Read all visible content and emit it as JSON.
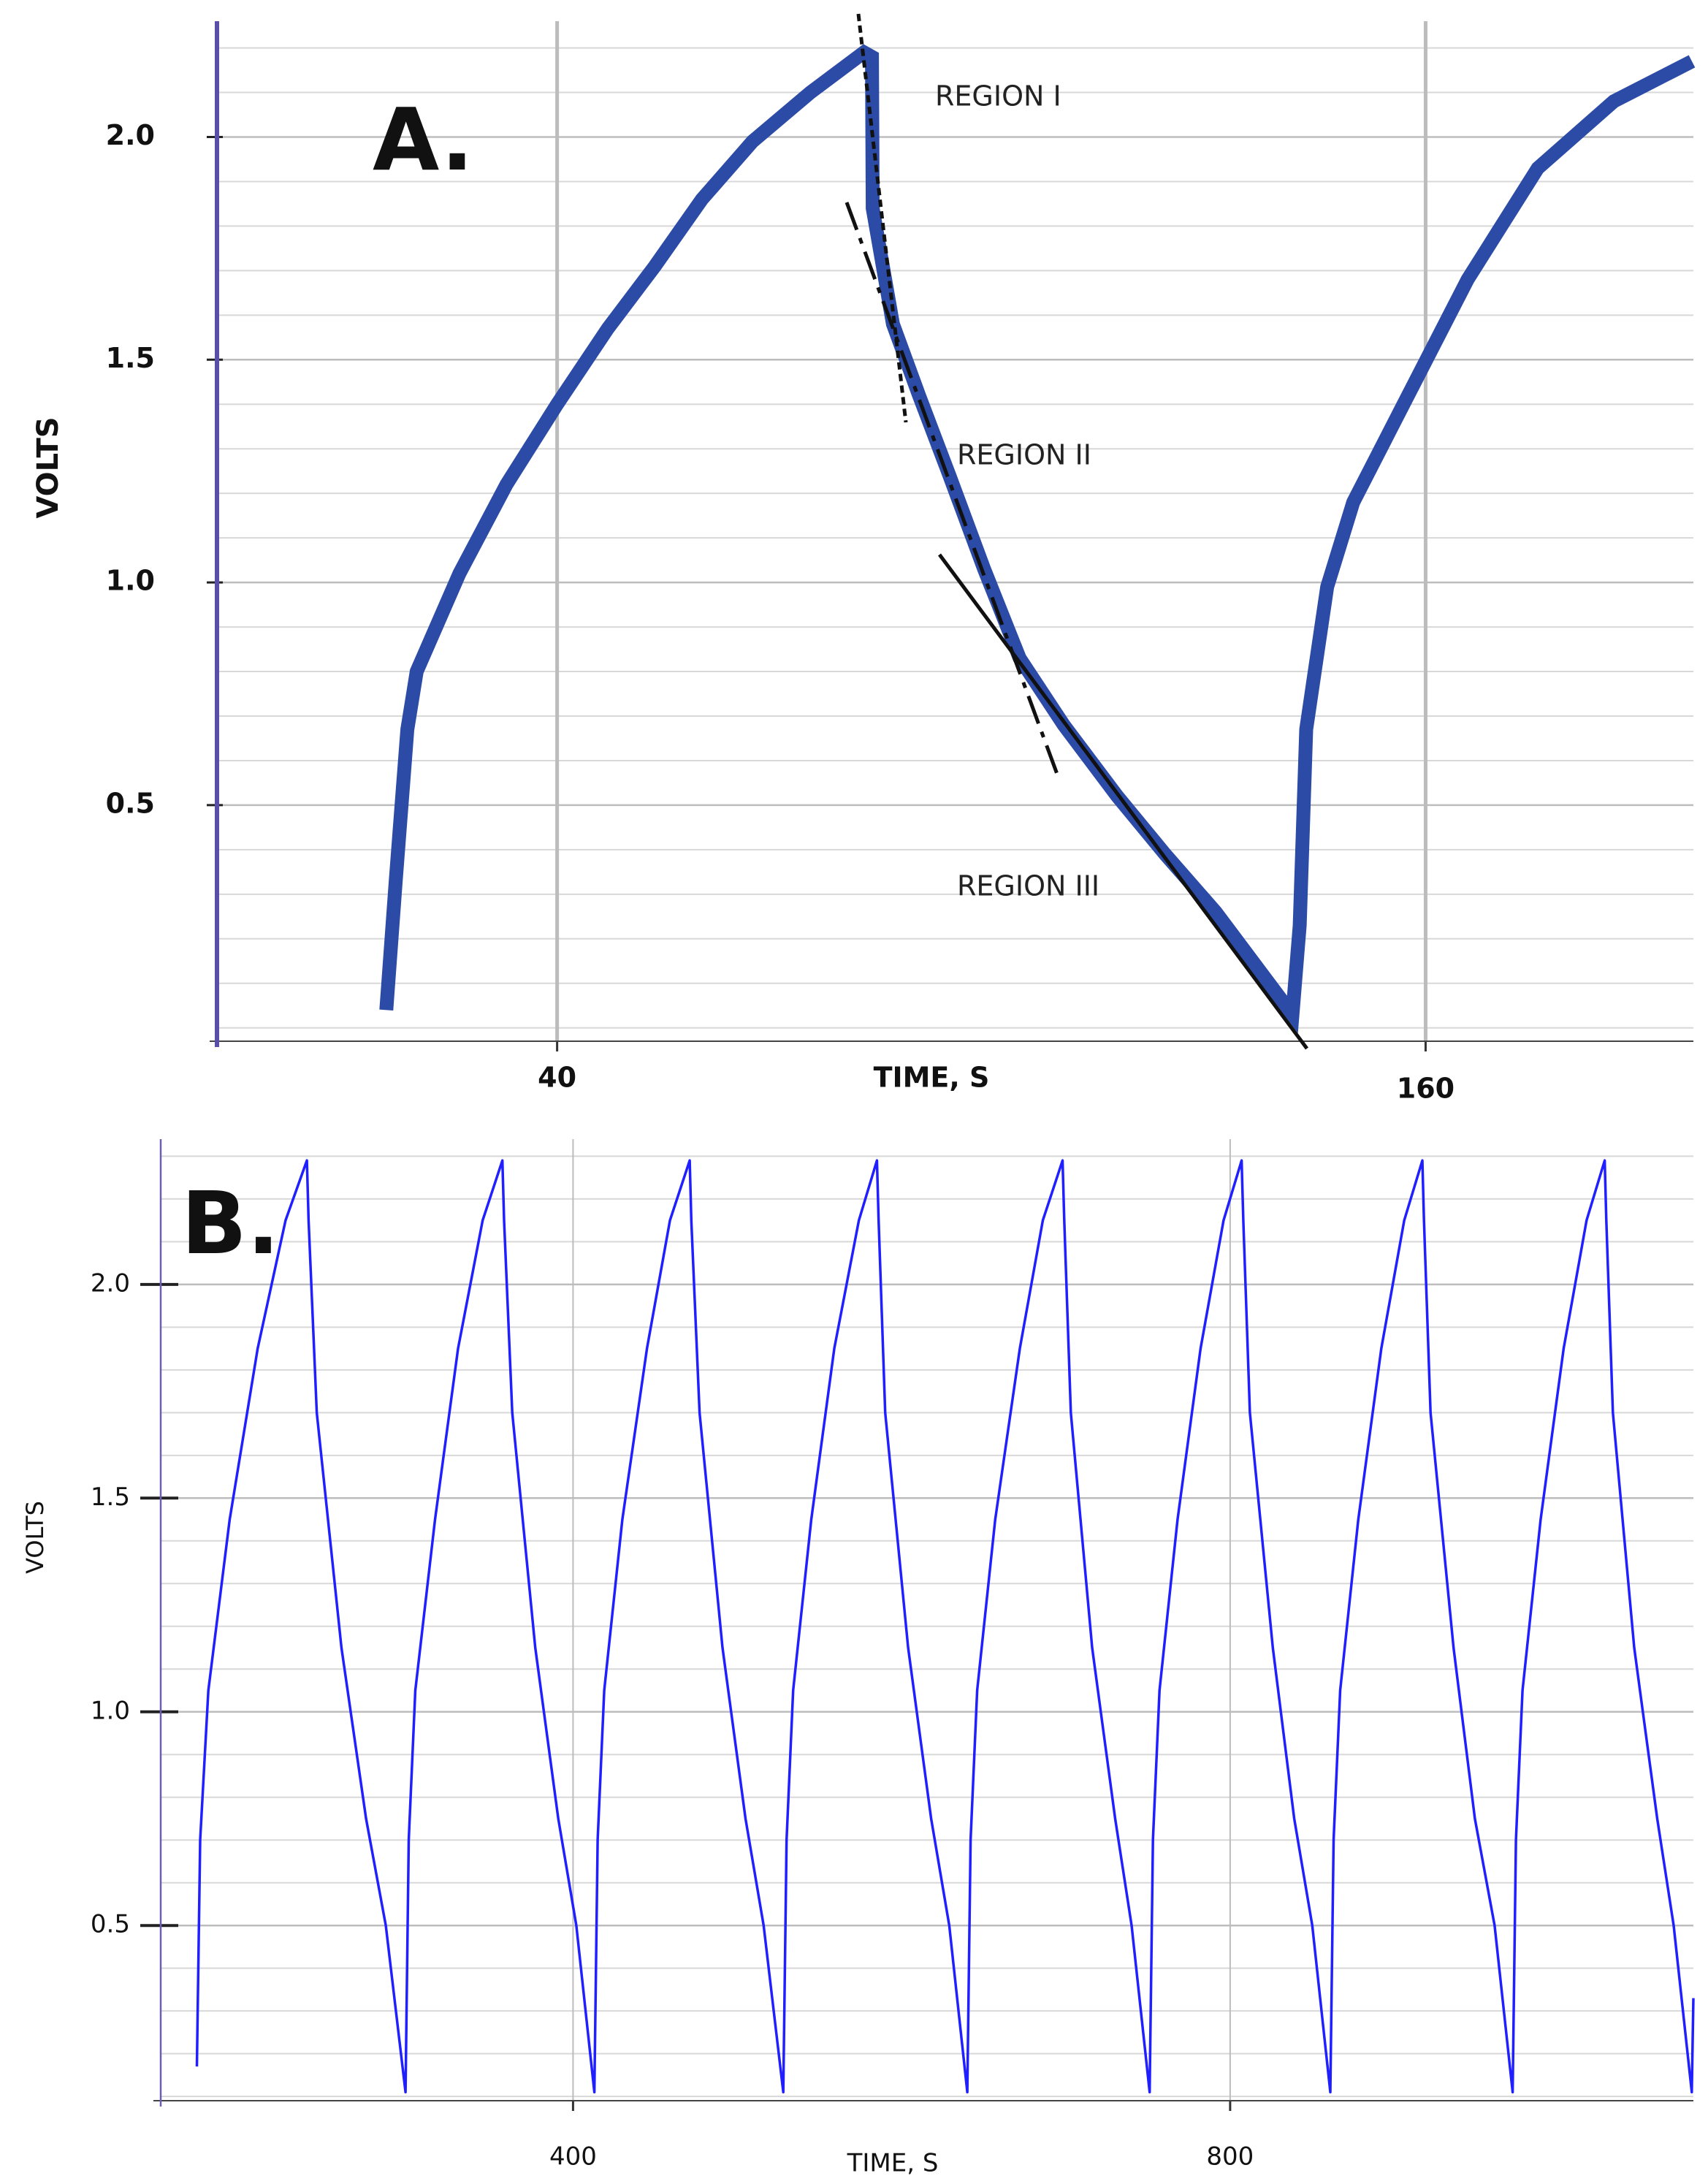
{
  "chart_data": [
    {
      "type": "line",
      "label": "A.",
      "xlabel": "TIME, S",
      "ylabel": "VOLTS",
      "annotations": [
        "REGION I",
        "REGION II",
        "REGION III"
      ],
      "x": [
        16.4,
        17.7,
        19.3,
        20.6,
        26.5,
        33,
        40,
        47,
        53.5,
        60,
        67,
        75,
        82.4,
        83.5,
        83.6,
        86.4,
        90,
        94.2,
        99,
        103.9,
        110,
        117.4,
        124,
        131,
        141.6,
        142.6,
        143.5,
        146.4,
        150,
        156,
        165.8,
        175.5,
        186,
        196.8
      ],
      "values": [
        0.04,
        0.33,
        0.67,
        0.8,
        1.02,
        1.22,
        1.4,
        1.57,
        1.71,
        1.86,
        1.99,
        2.1,
        2.19,
        2.18,
        1.84,
        1.58,
        1.42,
        1.24,
        1.03,
        0.83,
        0.68,
        0.52,
        0.39,
        0.26,
        0.03,
        0.23,
        0.67,
        0.99,
        1.18,
        1.37,
        1.68,
        1.93,
        2.08,
        2.17
      ],
      "color": "#2b4ba6",
      "xlim": [
        -7,
        197
      ],
      "ylim": [
        -0.03,
        2.26
      ],
      "xticks": [
        40,
        160
      ],
      "yticks": [
        0.5,
        {
          "value": 1,
          "label": "1.0"
        },
        1.5,
        {
          "value": 2,
          "label": "2.0"
        }
      ],
      "grid": true
    },
    {
      "type": "line",
      "label": "B.",
      "xlabel": "TIME, S",
      "ylabel": "VOLTS",
      "x": [
        171,
        173,
        178,
        191,
        208,
        225,
        238,
        239,
        244,
        259,
        274,
        286,
        298,
        300,
        304,
        316,
        330,
        345,
        357,
        358,
        363,
        377,
        391,
        402,
        413,
        415,
        419,
        430,
        445,
        459,
        471,
        472,
        477,
        491,
        505,
        516,
        528,
        530,
        534,
        545,
        559,
        574,
        585,
        586,
        590,
        604,
        618,
        629,
        640,
        642,
        646,
        657,
        672,
        686,
        698,
        699,
        703,
        716,
        730,
        740,
        751,
        753,
        757,
        768,
        782,
        796,
        807,
        808,
        812,
        826,
        839,
        850,
        861,
        863,
        867,
        878,
        892,
        906,
        917,
        918,
        922,
        936,
        949,
        961,
        972,
        974,
        978,
        989,
        1003,
        1017,
        1028,
        1029,
        1033,
        1046,
        1060,
        1070,
        1081,
        1082
      ],
      "values": [
        0.17,
        0.7,
        1.05,
        1.45,
        1.85,
        2.15,
        2.29,
        2.15,
        1.7,
        1.15,
        0.75,
        0.5,
        0.11,
        0.7,
        1.05,
        1.45,
        1.85,
        2.15,
        2.29,
        2.15,
        1.7,
        1.15,
        0.75,
        0.5,
        0.11,
        0.7,
        1.05,
        1.45,
        1.85,
        2.15,
        2.29,
        2.15,
        1.7,
        1.15,
        0.75,
        0.5,
        0.11,
        0.7,
        1.05,
        1.45,
        1.85,
        2.15,
        2.29,
        2.15,
        1.7,
        1.15,
        0.75,
        0.5,
        0.11,
        0.7,
        1.05,
        1.45,
        1.85,
        2.15,
        2.29,
        2.15,
        1.7,
        1.15,
        0.75,
        0.5,
        0.11,
        0.7,
        1.05,
        1.45,
        1.85,
        2.15,
        2.29,
        2.15,
        1.7,
        1.15,
        0.75,
        0.5,
        0.11,
        0.7,
        1.05,
        1.45,
        1.85,
        2.15,
        2.29,
        2.15,
        1.7,
        1.15,
        0.75,
        0.5,
        0.11,
        0.7,
        1.05,
        1.45,
        1.85,
        2.15,
        2.29,
        2.15,
        1.7,
        1.15,
        0.75,
        0.5,
        0.11,
        0.33
      ],
      "color": "#1f1fff",
      "xlim": [
        149,
        1082
      ],
      "ylim": [
        0.09,
        2.34
      ],
      "xticks": [
        400,
        800
      ],
      "yticks": [
        0.5,
        {
          "value": 1,
          "label": "1.0"
        },
        1.5,
        {
          "value": 2,
          "label": "2.0"
        }
      ],
      "grid": true
    }
  ]
}
